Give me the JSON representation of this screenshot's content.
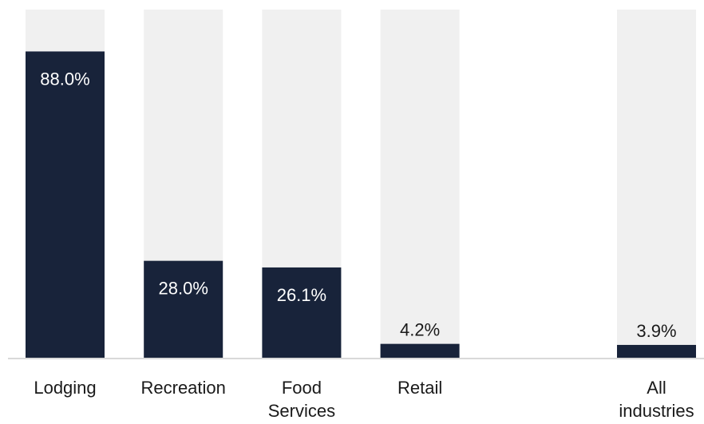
{
  "chart_data": {
    "type": "bar",
    "categories": [
      "Lodging",
      "Recreation",
      "Food Services",
      "Retail",
      "All industries"
    ],
    "category_lines": [
      [
        "Lodging"
      ],
      [
        "Recreation"
      ],
      [
        "Food",
        "Services"
      ],
      [
        "Retail"
      ],
      [
        "All",
        "industries"
      ]
    ],
    "values": [
      88.0,
      28.0,
      26.1,
      4.2,
      3.9
    ],
    "value_labels": [
      "88.0%",
      "28.0%",
      "26.1%",
      "4.2%",
      "3.9%"
    ],
    "slots": [
      0,
      1,
      2,
      3,
      5
    ],
    "ylim": [
      0,
      100
    ],
    "grid": false,
    "colors": {
      "bar": "#18233a",
      "background_bar": "#f0f0f0",
      "label_inside": "#ffffff",
      "label_outside": "#1a1a1a",
      "baseline": "#d9d9d9"
    }
  }
}
